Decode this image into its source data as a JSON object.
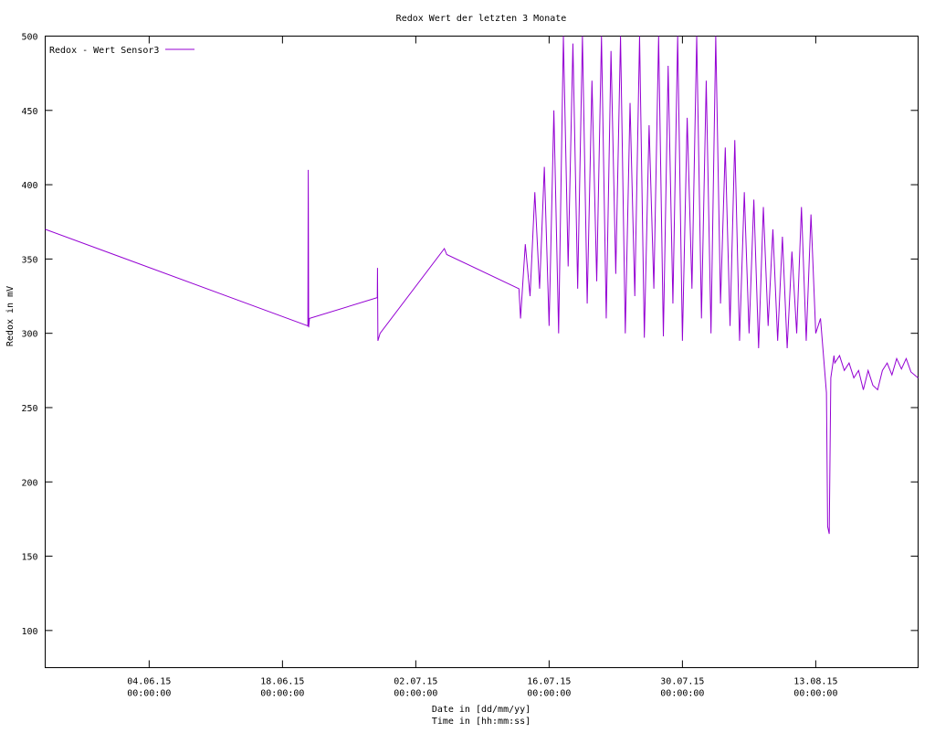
{
  "chart_data": {
    "type": "line",
    "title": "Redox Wert der letzten 3 Monate",
    "x_label": [
      "Date in [dd/mm/yy]",
      "Time in [hh:mm:ss]"
    ],
    "y_label": "Redox in mV",
    "legend": "top-left",
    "xlim": [
      "24.05.15 02:00",
      "23.08.15 18:00"
    ],
    "ylim": [
      75,
      500
    ],
    "yticks": [
      100,
      150,
      200,
      250,
      300,
      350,
      400,
      450,
      500
    ],
    "xticks": [
      {
        "date": "04.06.15",
        "time": "00:00:00"
      },
      {
        "date": "18.06.15",
        "time": "00:00:00"
      },
      {
        "date": "02.07.15",
        "time": "00:00:00"
      },
      {
        "date": "16.07.15",
        "time": "00:00:00"
      },
      {
        "date": "30.07.15",
        "time": "00:00:00"
      },
      {
        "date": "13.08.15",
        "time": "00:00:00"
      }
    ],
    "x": [
      "24.05.15 02:00",
      "20.06.15 16:00",
      "20.06.15 17:00",
      "20.06.15 18:00",
      "20.06.15 20:00",
      "27.06.15 23:00",
      "27.06.15 23:30",
      "28.06.15 00:30",
      "28.06.15 06:00",
      "05.07.15 00:00",
      "05.07.15 06:00",
      "12.07.15 20:00",
      "13.07.15 00:00",
      "13.07.15 12:00",
      "14.07.15 00:00",
      "14.07.15 12:00",
      "15.07.15 00:00",
      "15.07.15 12:00",
      "16.07.15 00:00",
      "16.07.15 12:00",
      "17.07.15 00:00",
      "17.07.15 12:00",
      "18.07.15 00:00",
      "18.07.15 12:00",
      "19.07.15 00:00",
      "19.07.15 12:00",
      "20.07.15 00:00",
      "20.07.15 12:00",
      "21.07.15 00:00",
      "21.07.15 12:00",
      "22.07.15 00:00",
      "22.07.15 12:00",
      "23.07.15 00:00",
      "23.07.15 12:00",
      "24.07.15 00:00",
      "24.07.15 12:00",
      "25.07.15 00:00",
      "25.07.15 12:00",
      "26.07.15 00:00",
      "26.07.15 12:00",
      "27.07.15 00:00",
      "27.07.15 12:00",
      "28.07.15 00:00",
      "28.07.15 12:00",
      "29.07.15 00:00",
      "29.07.15 12:00",
      "30.07.15 00:00",
      "30.07.15 12:00",
      "31.07.15 00:00",
      "31.07.15 12:00",
      "01.08.15 00:00",
      "01.08.15 12:00",
      "02.08.15 00:00",
      "02.08.15 12:00",
      "03.08.15 00:00",
      "03.08.15 12:00",
      "04.08.15 00:00",
      "04.08.15 12:00",
      "05.08.15 00:00",
      "05.08.15 12:00",
      "06.08.15 00:00",
      "06.08.15 12:00",
      "07.08.15 00:00",
      "07.08.15 12:00",
      "08.08.15 00:00",
      "08.08.15 12:00",
      "09.08.15 00:00",
      "09.08.15 12:00",
      "10.08.15 00:00",
      "10.08.15 12:00",
      "11.08.15 00:00",
      "11.08.15 12:00",
      "12.08.15 00:00",
      "12.08.15 12:00",
      "13.08.15 00:00",
      "13.08.15 12:00",
      "14.08.15 03:00",
      "14.08.15 06:00",
      "14.08.15 10:00",
      "14.08.15 14:00",
      "14.08.15 22:00",
      "15.08.15 00:00",
      "15.08.15 12:00",
      "16.08.15 00:00",
      "16.08.15 12:00",
      "17.08.15 00:00",
      "17.08.15 12:00",
      "18.08.15 00:00",
      "18.08.15 12:00",
      "19.08.15 00:00",
      "19.08.15 12:00",
      "20.08.15 00:00",
      "20.08.15 12:00",
      "21.08.15 00:00",
      "21.08.15 12:00",
      "22.08.15 00:00",
      "22.08.15 12:00",
      "23.08.15 00:00",
      "23.08.15 18:00"
    ],
    "series": [
      {
        "name": "Redox - Wert Sensor3",
        "color": "#9400d3",
        "values": [
          370,
          305,
          410,
          304,
          310,
          324,
          344,
          295,
          300,
          357,
          353,
          330,
          310,
          360,
          325,
          395,
          330,
          412,
          305,
          450,
          300,
          500,
          345,
          495,
          330,
          500,
          320,
          470,
          335,
          500,
          310,
          490,
          340,
          500,
          300,
          455,
          325,
          500,
          297,
          440,
          330,
          500,
          298,
          480,
          320,
          500,
          295,
          445,
          330,
          500,
          310,
          470,
          300,
          500,
          320,
          425,
          305,
          430,
          295,
          395,
          300,
          390,
          290,
          385,
          305,
          370,
          295,
          365,
          290,
          355,
          300,
          385,
          295,
          380,
          300,
          310,
          260,
          170,
          165,
          270,
          285,
          280,
          285,
          275,
          280,
          270,
          275,
          262,
          275,
          265,
          262,
          275,
          280,
          272,
          283,
          276,
          283,
          274,
          270
        ]
      }
    ]
  }
}
